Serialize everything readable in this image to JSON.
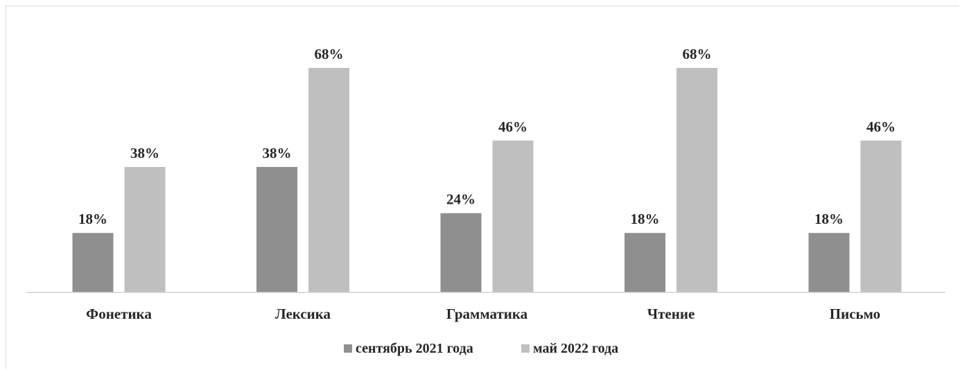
{
  "chart_data": {
    "type": "bar",
    "categories": [
      "Фонетика",
      "Лексика",
      "Грамматика",
      "Чтение",
      "Письмо"
    ],
    "series": [
      {
        "name": "сентябрь 2021 года",
        "values": [
          18,
          38,
          24,
          18,
          18
        ],
        "labels": [
          "18%",
          "38%",
          "24%",
          "18%",
          "18%"
        ]
      },
      {
        "name": "май 2022 года",
        "values": [
          38,
          68,
          46,
          68,
          46
        ],
        "labels": [
          "38%",
          "68%",
          "46%",
          "68%",
          "46%"
        ]
      }
    ],
    "colors": [
      "#8f8f8f",
      "#bfbfbf"
    ],
    "title": "",
    "xlabel": "",
    "ylabel": "",
    "ylim": [
      0,
      68
    ],
    "grid": false,
    "legend": "bottom"
  }
}
